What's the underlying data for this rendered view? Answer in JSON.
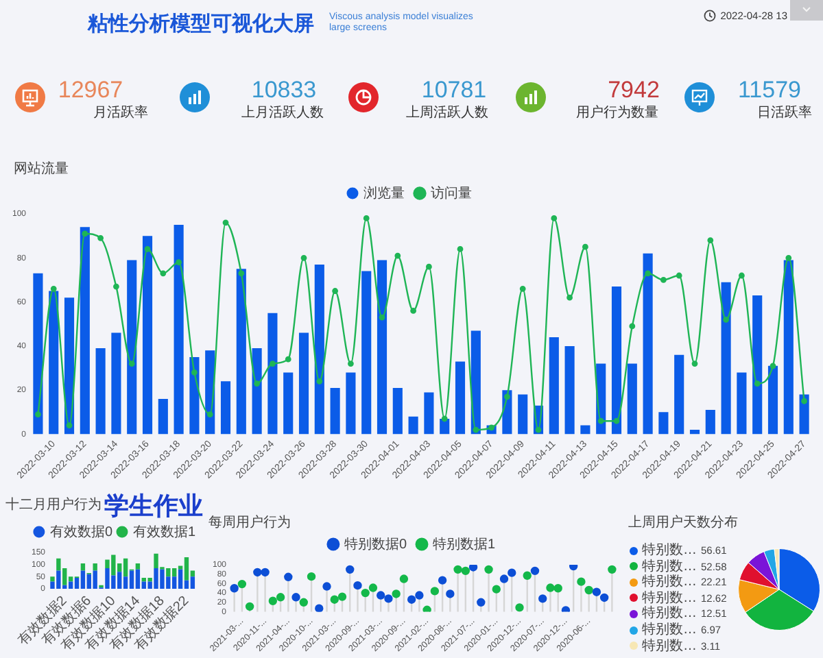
{
  "chart_data": [
    {
      "type": "other",
      "title": "粘性分析模型可视化大屏",
      "subtitle": "Viscous analysis model visualizes large screens",
      "annotations": [
        "2022-04-28 13"
      ]
    },
    {
      "type": "other",
      "categories": [
        "月活跃率",
        "上月活跃人数",
        "上周活跃人数",
        "用户行为数量",
        "日活跃率"
      ],
      "values": [
        12967,
        10833,
        10781,
        7942,
        11579
      ],
      "colors": [
        "#e8865a",
        "#3a98cf",
        "#3a98cf",
        "#c23a3c",
        "#3a98cf"
      ],
      "data_labels": true
    },
    {
      "type": "bar",
      "title": "网站流量",
      "categories": [
        null,
        "2022-03-10",
        null,
        "2022-03-12",
        null,
        "2022-03-14",
        null,
        "2022-03-16",
        null,
        "2022-03-18",
        null,
        "2022-03-20",
        null,
        "2022-03-22",
        null,
        "2022-03-24",
        null,
        "2022-03-26",
        null,
        "2022-03-28",
        null,
        "2022-03-30",
        null,
        "2022-04-01",
        null,
        "2022-04-03",
        null,
        "2022-04-05",
        null,
        "2022-04-07",
        null,
        "2022-04-09",
        null,
        "2022-04-11",
        null,
        "2022-04-13",
        null,
        "2022-04-15",
        null,
        "2022-04-17",
        null,
        "2022-04-19",
        null,
        "2022-04-21",
        null,
        "2022-04-23",
        null,
        "2022-04-25",
        null,
        "2022-04-27"
      ],
      "series": [
        {
          "name": "浏览量",
          "color": "#0b5ce8",
          "values": [
            73,
            65,
            62,
            94,
            39,
            46,
            79,
            90,
            16,
            95,
            35,
            38,
            24,
            75,
            39,
            55,
            28,
            46,
            77,
            21,
            28,
            74,
            79,
            21,
            8,
            19,
            7,
            33,
            47,
            4,
            20,
            18,
            13,
            44,
            40,
            4,
            32,
            67,
            32,
            82,
            10,
            36,
            2,
            11,
            69,
            28,
            63,
            31,
            79,
            18
          ]
        },
        {
          "name": "访问量",
          "type": "line",
          "color": "#1fb556",
          "values": [
            9,
            66,
            4,
            91,
            89,
            67,
            32,
            84,
            73,
            78,
            28,
            9,
            96,
            73,
            23,
            32,
            34,
            80,
            24,
            65,
            32,
            98,
            53,
            81,
            56,
            76,
            7,
            84,
            2,
            3,
            17,
            66,
            2,
            98,
            62,
            85,
            6,
            6,
            49,
            73,
            70,
            72,
            32,
            88,
            52,
            72,
            23,
            31,
            80,
            15
          ]
        }
      ],
      "ylim": [
        0,
        100
      ],
      "yticks": [
        0,
        20,
        40,
        60,
        80,
        100
      ],
      "legend": "top",
      "marker": "circle"
    },
    {
      "type": "bar",
      "title": "十二月用户行为",
      "annotations": [
        "学生作业"
      ],
      "stacked": true,
      "categories": [
        null,
        null,
        "有效数据2",
        null,
        null,
        null,
        "有效数据6",
        null,
        null,
        null,
        "有效数据10",
        null,
        null,
        null,
        "有效数据14",
        null,
        null,
        null,
        "有效数据18",
        null,
        null,
        null,
        "有效数据22",
        null
      ],
      "series": [
        {
          "name": "有效数据0",
          "color": "#1456e0",
          "values": [
            30,
            75,
            15,
            30,
            45,
            75,
            60,
            75,
            5,
            85,
            55,
            70,
            50,
            75,
            80,
            30,
            30,
            85,
            80,
            50,
            50,
            80,
            35,
            50
          ]
        },
        {
          "name": "有效数据1",
          "color": "#22b44a",
          "values": [
            20,
            50,
            70,
            20,
            5,
            30,
            5,
            30,
            10,
            35,
            85,
            35,
            75,
            5,
            25,
            15,
            15,
            60,
            10,
            35,
            35,
            15,
            95,
            25
          ]
        }
      ],
      "ylim": [
        0,
        150
      ],
      "yticks": [
        0,
        50,
        100,
        150
      ],
      "legend": "top"
    },
    {
      "type": "lollipop",
      "title": "每周用户行为",
      "categories": [
        null,
        "2021-03-...",
        null,
        null,
        "2020-11-...",
        null,
        null,
        "2021-04-...",
        null,
        null,
        "2020-10-...",
        null,
        null,
        "2021-03-...",
        null,
        null,
        "2020-09-...",
        null,
        null,
        "2021-03-...",
        null,
        null,
        "2020-09-...",
        null,
        null,
        "2021-02-...",
        null,
        null,
        "2020-08-...",
        null,
        null,
        "2021-07-...",
        null,
        null,
        "2020-01-...",
        null,
        null,
        "2020-12-...",
        null,
        null,
        "2020-07-...",
        null,
        null,
        "2020-12-...",
        null,
        null,
        "2020-06-...",
        null,
        null,
        null
      ],
      "series": [
        {
          "name": "特别数据0",
          "color": "#0d4fd6",
          "values": [
            50,
            null,
            null,
            84,
            84,
            null,
            null,
            74,
            31,
            null,
            null,
            7,
            54,
            null,
            null,
            90,
            56,
            null,
            null,
            35,
            28,
            null,
            null,
            26,
            35,
            null,
            null,
            67,
            38,
            null,
            null,
            95,
            20,
            null,
            null,
            70,
            83,
            null,
            null,
            87,
            28,
            null,
            null,
            3,
            97,
            null,
            null,
            42,
            30,
            null
          ]
        },
        {
          "name": "特别数据1",
          "color": "#14b84a",
          "values": [
            null,
            59,
            11,
            null,
            null,
            23,
            31,
            null,
            null,
            20,
            75,
            null,
            null,
            26,
            32,
            null,
            null,
            40,
            51,
            null,
            null,
            38,
            70,
            null,
            null,
            4,
            44,
            null,
            null,
            90,
            87,
            null,
            null,
            90,
            48,
            null,
            null,
            9,
            77,
            null,
            null,
            51,
            50,
            null,
            null,
            64,
            46,
            null,
            null,
            90
          ]
        }
      ],
      "ylim": [
        0,
        100
      ],
      "yticks": [
        0,
        20,
        40,
        60,
        80,
        100
      ],
      "legend": "top",
      "marker": "circle"
    },
    {
      "type": "pie",
      "title": "上周用户天数分布",
      "categories": [
        "特别数…",
        "特别数…",
        "特别数…",
        "特别数…",
        "特别数…",
        "特别数…",
        "特别数…"
      ],
      "values": [
        56.61,
        52.58,
        22.21,
        12.62,
        12.51,
        6.97,
        3.11
      ],
      "colors": [
        "#0b5ce8",
        "#12b43f",
        "#f39a12",
        "#e0102e",
        "#7a14d8",
        "#22a6e6",
        "#f7e7b4"
      ],
      "legend": "left",
      "data_labels": true
    }
  ]
}
